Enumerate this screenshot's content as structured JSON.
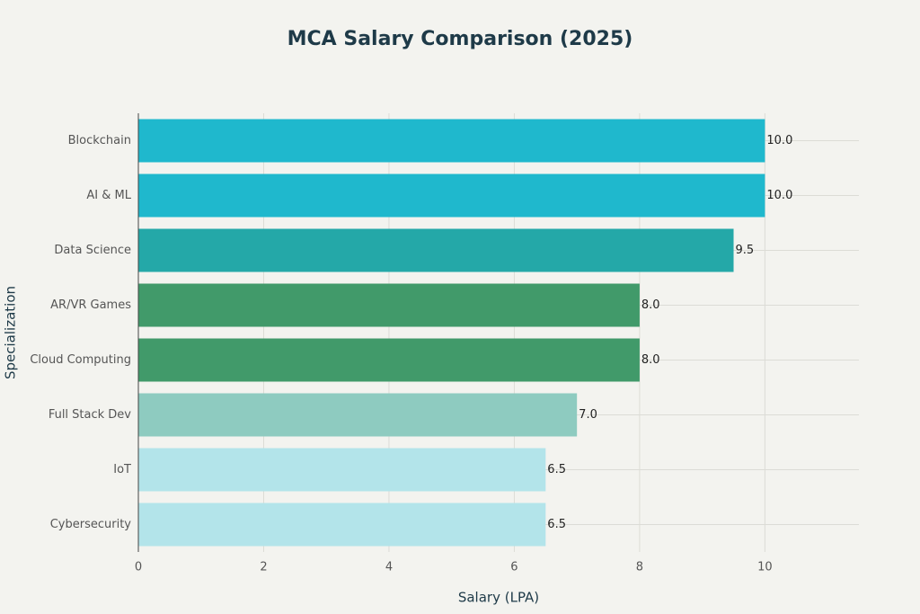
{
  "chart_data": {
    "type": "bar",
    "orientation": "horizontal",
    "title": "MCA Salary Comparison (2025)",
    "x_label": "Salary (LPA)",
    "y_label": "Specialization",
    "categories": [
      "Blockchain",
      "AI & ML",
      "Data Science",
      "AR/VR Games",
      "Cloud Computing",
      "Full Stack Dev",
      "IoT",
      "Cybersecurity"
    ],
    "values": [
      10,
      10,
      9.5,
      8,
      8,
      7,
      6.5,
      6.5
    ],
    "value_labels": [
      "10.0",
      "10.0",
      "9.5",
      "8.0",
      "8.0",
      "7.0",
      "6.5",
      "6.5"
    ],
    "colors": [
      "#1fb8cd",
      "#1fb8cd",
      "#24a8a8",
      "#419a6a",
      "#419a6a",
      "#8ecbc0",
      "#b3e4ea",
      "#b3e4ea"
    ],
    "xlim": [
      0,
      11.5
    ],
    "xticks": [
      0,
      2,
      4,
      6,
      8,
      10
    ],
    "grid": true
  }
}
